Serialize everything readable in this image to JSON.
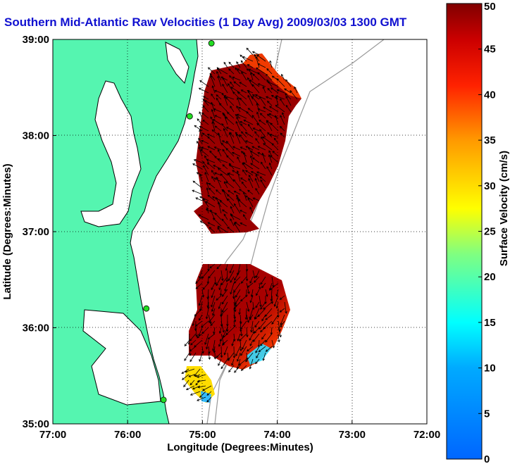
{
  "title": "Southern Mid-Atlantic Raw Velocities (1 Day Avg) 2009/03/03 1300 GMT",
  "axes": {
    "xlabel": "Longitude (Degrees:Minutes)",
    "ylabel": "Latitude (Degrees:Minutes)",
    "x_ticks": [
      "77:00",
      "76:00",
      "75:00",
      "74:00",
      "73:00",
      "72:00"
    ],
    "y_ticks": [
      "39:00",
      "38:00",
      "37:00",
      "36:00",
      "35:00"
    ],
    "xlim": [
      -77,
      -72
    ],
    "ylim": [
      35,
      39
    ],
    "grid": "dotted"
  },
  "colorbar": {
    "label": "Surface Velocity (cm/s)",
    "ticks": [
      "0",
      "5",
      "10",
      "15",
      "20",
      "25",
      "30",
      "35",
      "40",
      "45",
      "50"
    ],
    "range": [
      0,
      50
    ]
  },
  "colors": {
    "land": "#55f5b0",
    "title": "#1010d0",
    "station": "#22dd22"
  },
  "stations": [
    {
      "name": "station-cape-may",
      "lon": -74.88,
      "lat": 38.96
    },
    {
      "name": "station-lewes",
      "lon": -75.17,
      "lat": 38.2
    },
    {
      "name": "station-duck",
      "lon": -75.75,
      "lat": 36.2
    },
    {
      "name": "station-hatteras",
      "lon": -75.52,
      "lat": 35.25
    }
  ]
}
